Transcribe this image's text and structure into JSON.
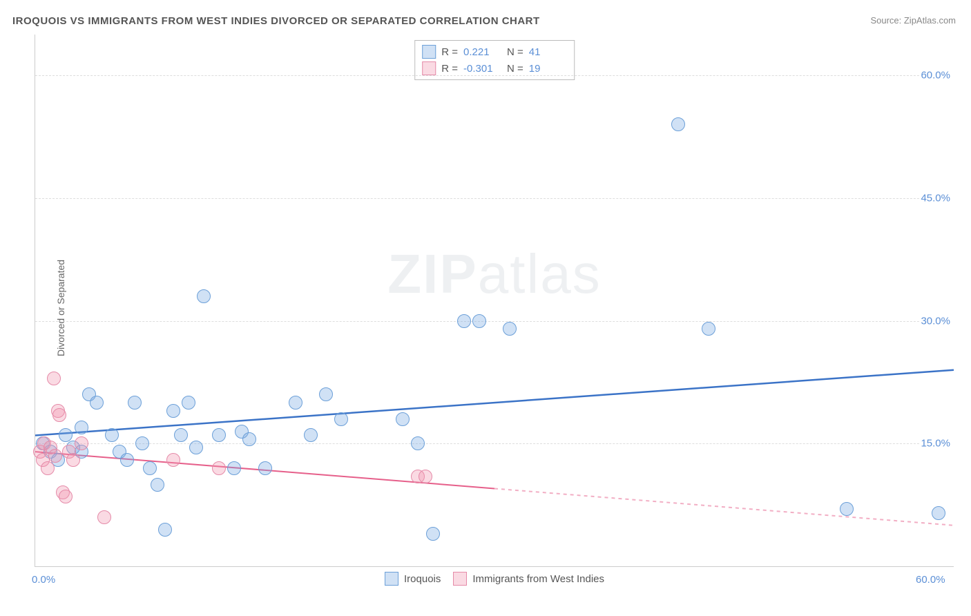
{
  "title": "IROQUOIS VS IMMIGRANTS FROM WEST INDIES DIVORCED OR SEPARATED CORRELATION CHART",
  "source": "Source: ZipAtlas.com",
  "y_axis_label": "Divorced or Separated",
  "watermark": {
    "zip": "ZIP",
    "atlas": "atlas"
  },
  "chart": {
    "type": "scatter",
    "xlim": [
      0,
      60
    ],
    "ylim": [
      0,
      65
    ],
    "x_ticks": [
      {
        "v": 0,
        "label": "0.0%"
      },
      {
        "v": 60,
        "label": "60.0%"
      }
    ],
    "y_ticks": [
      {
        "v": 15,
        "label": "15.0%"
      },
      {
        "v": 30,
        "label": "30.0%"
      },
      {
        "v": 45,
        "label": "45.0%"
      },
      {
        "v": 60,
        "label": "60.0%"
      }
    ],
    "grid_color": "#dddddd",
    "background_color": "#ffffff",
    "point_radius": 9,
    "series": [
      {
        "name": "Iroquois",
        "color_fill": "rgba(120,170,225,0.35)",
        "color_stroke": "#6b9fd8",
        "r": 0.221,
        "n": 41,
        "trend": {
          "x1": 0,
          "y1": 16,
          "x2": 60,
          "y2": 24,
          "dash_from_x": null,
          "stroke": "#3b73c7",
          "width": 2.5
        },
        "points": [
          {
            "x": 0.5,
            "y": 15
          },
          {
            "x": 1,
            "y": 14
          },
          {
            "x": 1.5,
            "y": 13
          },
          {
            "x": 2,
            "y": 16
          },
          {
            "x": 2.5,
            "y": 14.5
          },
          {
            "x": 3,
            "y": 17
          },
          {
            "x": 3,
            "y": 14
          },
          {
            "x": 3.5,
            "y": 21
          },
          {
            "x": 4,
            "y": 20
          },
          {
            "x": 5,
            "y": 16
          },
          {
            "x": 5.5,
            "y": 14
          },
          {
            "x": 6,
            "y": 13
          },
          {
            "x": 6.5,
            "y": 20
          },
          {
            "x": 7,
            "y": 15
          },
          {
            "x": 7.5,
            "y": 12
          },
          {
            "x": 8,
            "y": 10
          },
          {
            "x": 8.5,
            "y": 4.5
          },
          {
            "x": 9,
            "y": 19
          },
          {
            "x": 9.5,
            "y": 16
          },
          {
            "x": 10,
            "y": 20
          },
          {
            "x": 10.5,
            "y": 14.5
          },
          {
            "x": 11,
            "y": 33
          },
          {
            "x": 12,
            "y": 16
          },
          {
            "x": 13,
            "y": 12
          },
          {
            "x": 13.5,
            "y": 16.5
          },
          {
            "x": 14,
            "y": 15.5
          },
          {
            "x": 15,
            "y": 12
          },
          {
            "x": 17,
            "y": 20
          },
          {
            "x": 18,
            "y": 16
          },
          {
            "x": 19,
            "y": 21
          },
          {
            "x": 20,
            "y": 18
          },
          {
            "x": 24,
            "y": 18
          },
          {
            "x": 25,
            "y": 15
          },
          {
            "x": 26,
            "y": 4
          },
          {
            "x": 28,
            "y": 30
          },
          {
            "x": 29,
            "y": 30
          },
          {
            "x": 31,
            "y": 29
          },
          {
            "x": 42,
            "y": 54
          },
          {
            "x": 44,
            "y": 29
          },
          {
            "x": 53,
            "y": 7
          },
          {
            "x": 59,
            "y": 6.5
          }
        ]
      },
      {
        "name": "Immigrants from West Indies",
        "color_fill": "rgba(240,150,175,0.35)",
        "color_stroke": "#e58aa8",
        "r": -0.301,
        "n": 19,
        "trend": {
          "x1": 0,
          "y1": 14,
          "x2": 60,
          "y2": 5,
          "dash_from_x": 30,
          "stroke": "#e65f8a",
          "width": 2
        },
        "points": [
          {
            "x": 0.3,
            "y": 14
          },
          {
            "x": 0.5,
            "y": 13
          },
          {
            "x": 0.6,
            "y": 15
          },
          {
            "x": 0.8,
            "y": 12
          },
          {
            "x": 1,
            "y": 14.5
          },
          {
            "x": 1.2,
            "y": 23
          },
          {
            "x": 1.3,
            "y": 13.5
          },
          {
            "x": 1.5,
            "y": 19
          },
          {
            "x": 1.6,
            "y": 18.5
          },
          {
            "x": 1.8,
            "y": 9
          },
          {
            "x": 2,
            "y": 8.5
          },
          {
            "x": 2.2,
            "y": 14
          },
          {
            "x": 2.5,
            "y": 13
          },
          {
            "x": 3,
            "y": 15
          },
          {
            "x": 4.5,
            "y": 6
          },
          {
            "x": 9,
            "y": 13
          },
          {
            "x": 12,
            "y": 12
          },
          {
            "x": 25,
            "y": 11
          },
          {
            "x": 25.5,
            "y": 11
          }
        ]
      }
    ]
  },
  "legend_top": {
    "r_label": "R =",
    "n_label": "N ="
  },
  "legend_bottom": {
    "items": [
      "Iroquois",
      "Immigrants from West Indies"
    ]
  },
  "colors": {
    "title_text": "#555555",
    "source_text": "#888888",
    "tick_text": "#5b8fd6",
    "axis_label_text": "#666666"
  }
}
